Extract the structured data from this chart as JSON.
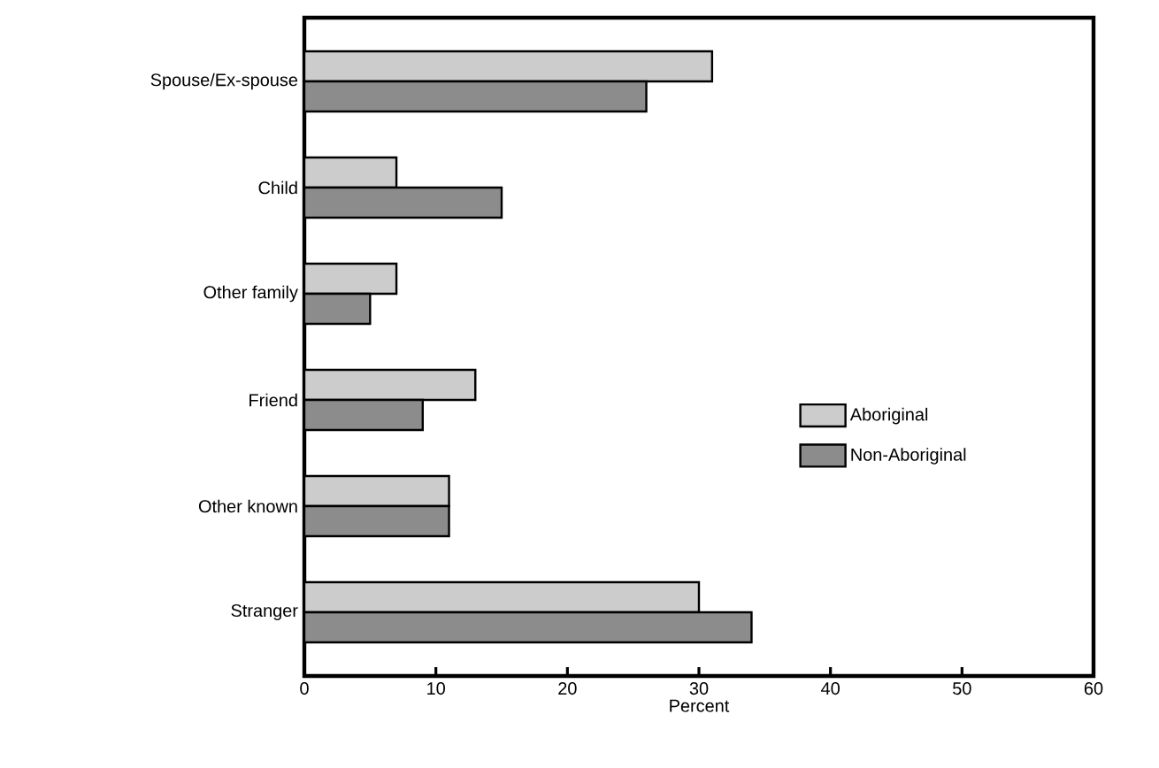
{
  "chart_data": {
    "type": "bar",
    "orientation": "horizontal",
    "xlabel": "Percent",
    "categories": [
      "Spouse/Ex-spouse",
      "Child",
      "Other family",
      "Friend",
      "Other known",
      "Stranger"
    ],
    "series": [
      {
        "name": "Aboriginal",
        "color": "#cccccc",
        "values": [
          31,
          7,
          7,
          13,
          11,
          30
        ]
      },
      {
        "name": "Non-Aboriginal",
        "color": "#8c8c8c",
        "values": [
          26,
          15,
          5,
          9,
          11,
          34
        ]
      }
    ],
    "xlim": [
      0,
      60
    ],
    "xticks": [
      0,
      10,
      20,
      30,
      40,
      50,
      60
    ],
    "legend": "right",
    "grid": false
  }
}
